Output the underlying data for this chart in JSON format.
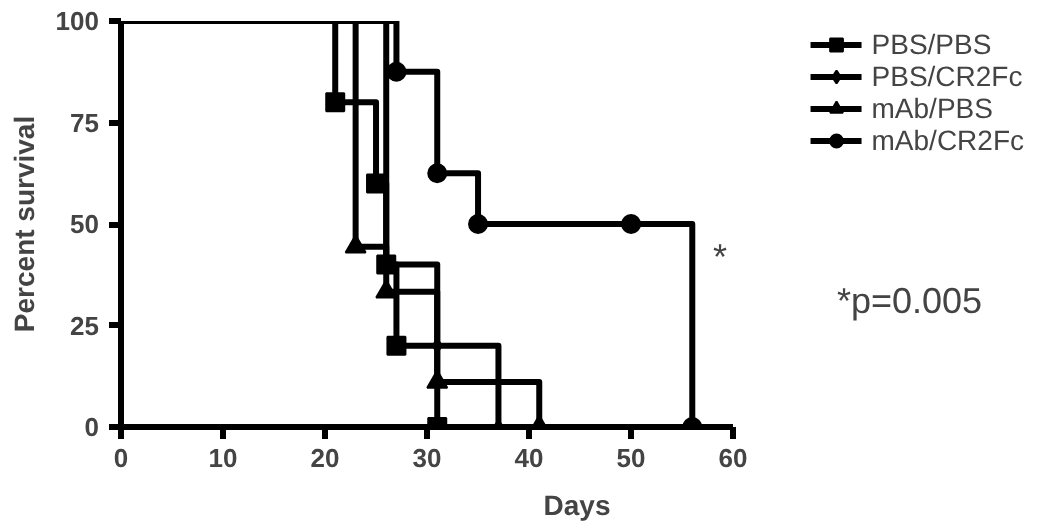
{
  "chart_data": {
    "type": "step",
    "xlabel": "Days",
    "ylabel": "Percent survival",
    "xlim": [
      0,
      60
    ],
    "ylim": [
      0,
      100
    ],
    "xticks": [
      0,
      10,
      20,
      30,
      40,
      50,
      60
    ],
    "yticks": [
      0,
      25,
      50,
      75,
      100
    ],
    "grid": false,
    "legend": "top right",
    "line_style": "solid",
    "series": [
      {
        "name": "PBS/PBS",
        "color": "#000000",
        "marker": "square",
        "x": [
          0,
          21,
          25,
          26,
          27,
          31
        ],
        "values": [
          100,
          80,
          60,
          40,
          20,
          0
        ]
      },
      {
        "name": "PBS/CR2Fc",
        "color": "#000000",
        "marker": "diamond",
        "x": [
          0,
          26,
          31,
          37
        ],
        "values": [
          100,
          40,
          20,
          0
        ]
      },
      {
        "name": "mAb/PBS",
        "color": "#000000",
        "marker": "triangle",
        "x": [
          0,
          23,
          26,
          31,
          41
        ],
        "values": [
          100,
          44.4,
          33.3,
          11.1,
          0
        ]
      },
      {
        "name": "mAb/CR2Fc",
        "color": "#000000",
        "marker": "circle",
        "x": [
          0,
          27,
          31,
          35,
          50,
          56
        ],
        "values": [
          100,
          87.5,
          62.5,
          50,
          50,
          0
        ]
      }
    ],
    "annotations": [
      "*",
      "*p=0.005"
    ]
  }
}
